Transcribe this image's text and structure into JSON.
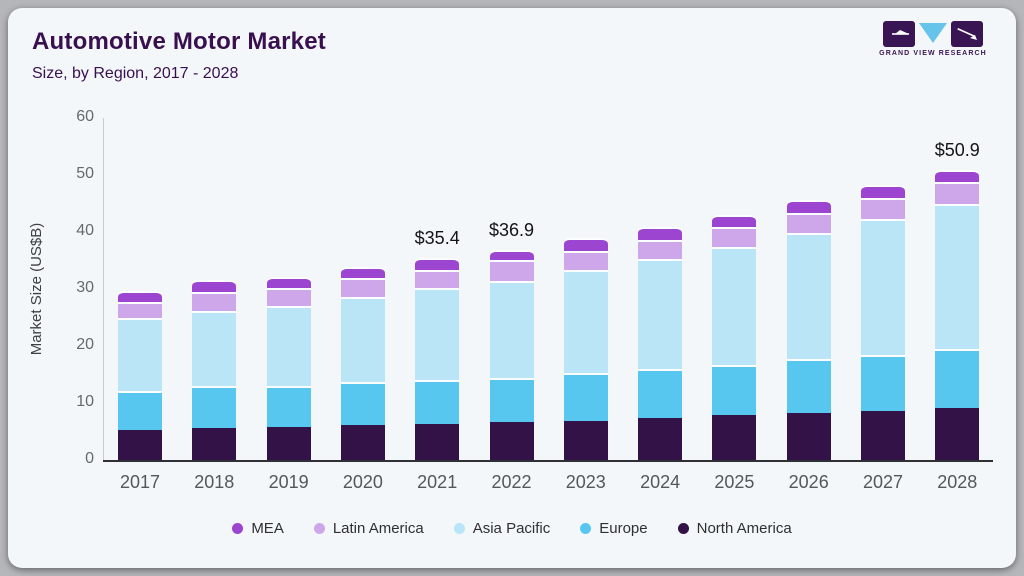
{
  "header": {
    "title": "Automotive Motor Market",
    "subtitle": "Size, by Region, 2017 - 2028",
    "logo_text": "GRAND VIEW RESEARCH"
  },
  "chart_data": {
    "type": "bar",
    "stacked": true,
    "title": "Automotive Motor Market Size, by Region, 2017 - 2028",
    "xlabel": "",
    "ylabel": "Market Size (US$B)",
    "ylim": [
      0,
      60
    ],
    "yticks": [
      0,
      10,
      20,
      30,
      40,
      50,
      60
    ],
    "grid": false,
    "legend_position": "bottom",
    "categories": [
      "2017",
      "2018",
      "2019",
      "2020",
      "2021",
      "2022",
      "2023",
      "2024",
      "2025",
      "2026",
      "2027",
      "2028"
    ],
    "series": [
      {
        "name": "North America",
        "color": "#321247",
        "values": [
          5.3,
          5.7,
          5.8,
          6.1,
          6.3,
          6.7,
          6.9,
          7.3,
          7.9,
          8.2,
          8.6,
          9.2
        ]
      },
      {
        "name": "Europe",
        "color": "#58c7f0",
        "values": [
          6.8,
          7.2,
          7.2,
          7.5,
          7.7,
          7.7,
          8.4,
          8.6,
          8.7,
          9.5,
          9.8,
          10.2
        ]
      },
      {
        "name": "Asia Pacific",
        "color": "#b9e5f7",
        "values": [
          12.8,
          13.3,
          14.0,
          15.0,
          16.1,
          17.0,
          18.1,
          19.4,
          20.7,
          22.1,
          23.8,
          25.5
        ]
      },
      {
        "name": "Latin America",
        "color": "#cea7ea",
        "values": [
          2.9,
          3.3,
          3.2,
          3.4,
          3.2,
          3.7,
          3.2,
          3.3,
          3.6,
          3.6,
          3.8,
          3.9
        ]
      },
      {
        "name": "MEA",
        "color": "#9b45d1",
        "values": [
          1.9,
          2.0,
          1.9,
          1.9,
          2.1,
          1.8,
          2.3,
          2.2,
          2.0,
          2.2,
          2.2,
          2.1
        ]
      }
    ],
    "totals": [
      29.7,
      31.5,
      32.1,
      33.9,
      35.4,
      36.9,
      38.9,
      40.8,
      42.9,
      45.6,
      48.2,
      50.9
    ],
    "annotations": [
      {
        "category": "2021",
        "label": "$35.4"
      },
      {
        "category": "2022",
        "label": "$36.9"
      },
      {
        "category": "2028",
        "label": "$50.9"
      }
    ]
  },
  "legend": {
    "items": [
      {
        "label": "MEA",
        "color": "#9b45d1"
      },
      {
        "label": "Latin America",
        "color": "#cea7ea"
      },
      {
        "label": "Asia Pacific",
        "color": "#b9e5f7"
      },
      {
        "label": "Europe",
        "color": "#58c7f0"
      },
      {
        "label": "North America",
        "color": "#321247"
      }
    ]
  }
}
